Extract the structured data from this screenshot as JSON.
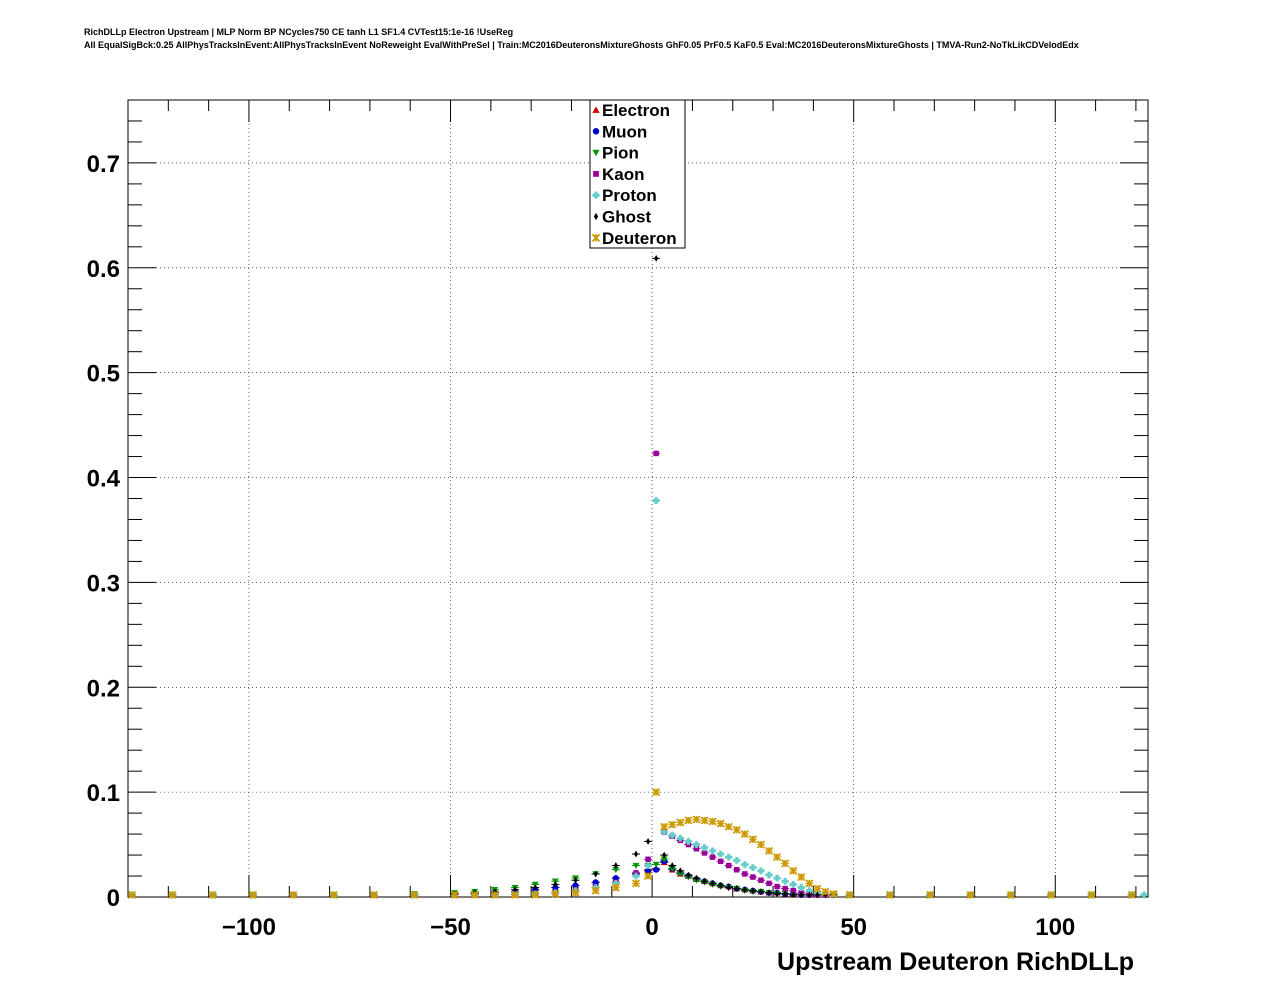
{
  "title": {
    "line1": "RichDLLp Electron Upstream | MLP Norm BP NCycles750 CE tanh L1 SF1.4 CVTest15:1e-16 !UseReg",
    "line2": "All EqualSigBck:0.25 AllPhysTracksInEvent:AllPhysTracksInEvent NoReweight EvalWithPreSel | Train:MC2016DeuteronsMixtureGhosts GhF0.05 PrF0.5 KaF0.5 Eval:MC2016DeuteronsMixtureGhosts | TMVA-Run2-NoTkLikCDVelodEdx"
  },
  "chart_data": {
    "type": "scatter",
    "xlabel": "Upstream Deuteron RichDLLp",
    "ylabel": "",
    "xlim": [
      -130,
      123
    ],
    "ylim": [
      0,
      0.76
    ],
    "grid": true,
    "legend_position": "top-center",
    "x_ticks": [
      {
        "value": -100,
        "label": "−100"
      },
      {
        "value": -50,
        "label": "−50"
      },
      {
        "value": 0,
        "label": "0"
      },
      {
        "value": 50,
        "label": "50"
      },
      {
        "value": 100,
        "label": "100"
      }
    ],
    "y_ticks": [
      {
        "value": 0,
        "label": "0"
      },
      {
        "value": 0.1,
        "label": "0.1"
      },
      {
        "value": 0.2,
        "label": "0.2"
      },
      {
        "value": 0.3,
        "label": "0.3"
      },
      {
        "value": 0.4,
        "label": "0.4"
      },
      {
        "value": 0.5,
        "label": "0.5"
      },
      {
        "value": 0.6,
        "label": "0.6"
      },
      {
        "value": 0.7,
        "label": "0.7"
      }
    ],
    "series": [
      {
        "name": "Electron",
        "color": "#cc0000",
        "marker": "triangle-up",
        "x": [
          -129,
          -119,
          -109,
          -99,
          -89,
          -79,
          -69,
          -59,
          -49,
          -44,
          -39,
          -34,
          -29,
          -24,
          -19,
          -14,
          -9,
          -4,
          -1,
          1,
          3,
          5,
          7,
          9,
          11,
          13,
          15,
          17,
          19,
          21,
          23,
          25,
          27,
          29,
          31,
          33,
          35,
          37,
          39,
          41,
          43,
          45,
          49,
          59,
          69,
          79,
          89,
          99,
          109,
          119
        ],
        "y": [
          0.002,
          0.002,
          0.002,
          0.002,
          0.002,
          0.002,
          0.002,
          0.002,
          0.002,
          0.003,
          0.004,
          0.005,
          0.007,
          0.009,
          0.011,
          0.014,
          0.018,
          0.022,
          0.026,
          0.027,
          0.033,
          0.026,
          0.022,
          0.02,
          0.017,
          0.015,
          0.013,
          0.011,
          0.01,
          0.008,
          0.007,
          0.006,
          0.005,
          0.004,
          0.004,
          0.003,
          0.003,
          0.002,
          0.002,
          0.002,
          0.002,
          0.002,
          0.002,
          0.002,
          0.002,
          0.002,
          0.002,
          0.002,
          0.002,
          0.002
        ]
      },
      {
        "name": "Muon",
        "color": "#0000cc",
        "marker": "circle",
        "x": [
          -129,
          -119,
          -109,
          -99,
          -89,
          -79,
          -69,
          -59,
          -49,
          -44,
          -39,
          -34,
          -29,
          -24,
          -19,
          -14,
          -9,
          -4,
          -1,
          1,
          3,
          5,
          7,
          9,
          11,
          13,
          15,
          17,
          19,
          21,
          23,
          25,
          27,
          29,
          31,
          33,
          35,
          37,
          39,
          41,
          43,
          45,
          49,
          59,
          69,
          79,
          89,
          99,
          109,
          119
        ],
        "y": [
          0.002,
          0.002,
          0.002,
          0.002,
          0.002,
          0.002,
          0.002,
          0.002,
          0.002,
          0.003,
          0.004,
          0.005,
          0.007,
          0.009,
          0.011,
          0.014,
          0.018,
          0.022,
          0.025,
          0.026,
          0.034,
          0.027,
          0.023,
          0.02,
          0.017,
          0.015,
          0.013,
          0.011,
          0.01,
          0.008,
          0.007,
          0.006,
          0.005,
          0.004,
          0.004,
          0.003,
          0.003,
          0.002,
          0.002,
          0.002,
          0.002,
          0.002,
          0.002,
          0.002,
          0.002,
          0.002,
          0.002,
          0.002,
          0.002,
          0.002
        ]
      },
      {
        "name": "Pion",
        "color": "#009900",
        "marker": "triangle-down",
        "x": [
          -129,
          -119,
          -109,
          -99,
          -89,
          -79,
          -69,
          -59,
          -49,
          -44,
          -39,
          -34,
          -29,
          -24,
          -19,
          -14,
          -9,
          -4,
          -1,
          1,
          3,
          5,
          7,
          9,
          11,
          13,
          15,
          17,
          19,
          21,
          23,
          25,
          27,
          29,
          31,
          33,
          35,
          37,
          39,
          41,
          43,
          45,
          49,
          59,
          69,
          79,
          89,
          99,
          109,
          119
        ],
        "y": [
          0.002,
          0.002,
          0.002,
          0.002,
          0.002,
          0.002,
          0.002,
          0.003,
          0.004,
          0.005,
          0.007,
          0.009,
          0.012,
          0.015,
          0.018,
          0.022,
          0.026,
          0.03,
          0.03,
          0.031,
          0.036,
          0.027,
          0.022,
          0.019,
          0.016,
          0.014,
          0.012,
          0.01,
          0.009,
          0.008,
          0.006,
          0.005,
          0.005,
          0.004,
          0.003,
          0.003,
          0.002,
          0.002,
          0.002,
          0.002,
          0.002,
          0.002,
          0.002,
          0.002,
          0.002,
          0.002,
          0.002,
          0.002,
          0.002,
          0.002
        ]
      },
      {
        "name": "Kaon",
        "color": "#990099",
        "marker": "square",
        "x": [
          -129,
          -119,
          -109,
          -99,
          -89,
          -79,
          -69,
          -59,
          -49,
          -44,
          -39,
          -34,
          -29,
          -24,
          -19,
          -14,
          -9,
          -4,
          -1,
          1,
          3,
          5,
          7,
          9,
          11,
          13,
          15,
          17,
          19,
          21,
          23,
          25,
          27,
          29,
          31,
          33,
          35,
          37,
          39,
          41,
          43,
          45,
          49,
          59,
          69,
          79,
          89,
          99,
          109,
          119
        ],
        "y": [
          0.002,
          0.002,
          0.002,
          0.002,
          0.002,
          0.002,
          0.002,
          0.002,
          0.002,
          0.002,
          0.002,
          0.003,
          0.003,
          0.004,
          0.006,
          0.009,
          0.014,
          0.023,
          0.036,
          0.423,
          0.062,
          0.058,
          0.054,
          0.05,
          0.046,
          0.042,
          0.038,
          0.034,
          0.03,
          0.026,
          0.022,
          0.019,
          0.016,
          0.013,
          0.01,
          0.008,
          0.006,
          0.004,
          0.003,
          0.002,
          0.002,
          0.002,
          0.002,
          0.002,
          0.002,
          0.002,
          0.002,
          0.002,
          0.002,
          0.002
        ]
      },
      {
        "name": "Proton",
        "color": "#66cccc",
        "marker": "cross",
        "x": [
          -129,
          -119,
          -109,
          -99,
          -89,
          -79,
          -69,
          -59,
          -49,
          -44,
          -39,
          -34,
          -29,
          -24,
          -19,
          -14,
          -9,
          -4,
          -1,
          1,
          3,
          5,
          7,
          9,
          11,
          13,
          15,
          17,
          19,
          21,
          23,
          25,
          27,
          29,
          31,
          33,
          35,
          37,
          39,
          41,
          43,
          45,
          49,
          59,
          69,
          79,
          89,
          99,
          109,
          119,
          122
        ],
        "y": [
          0.002,
          0.002,
          0.002,
          0.002,
          0.002,
          0.002,
          0.002,
          0.002,
          0.002,
          0.002,
          0.002,
          0.003,
          0.003,
          0.004,
          0.006,
          0.009,
          0.013,
          0.02,
          0.03,
          0.378,
          0.062,
          0.059,
          0.056,
          0.053,
          0.05,
          0.047,
          0.044,
          0.041,
          0.038,
          0.035,
          0.031,
          0.028,
          0.025,
          0.021,
          0.018,
          0.015,
          0.012,
          0.009,
          0.006,
          0.004,
          0.003,
          0.002,
          0.002,
          0.002,
          0.002,
          0.002,
          0.002,
          0.002,
          0.002,
          0.002,
          0.002
        ]
      },
      {
        "name": "Ghost",
        "color": "#000000",
        "marker": "diamond",
        "x": [
          -129,
          -119,
          -109,
          -99,
          -89,
          -79,
          -69,
          -59,
          -49,
          -44,
          -39,
          -34,
          -29,
          -24,
          -19,
          -14,
          -9,
          -4,
          -1,
          1,
          3,
          5,
          7,
          9,
          11,
          13,
          15,
          17,
          19,
          21,
          23,
          25,
          27,
          29,
          31,
          33,
          35,
          37,
          39,
          41,
          43,
          45,
          49,
          59,
          69,
          79,
          89,
          99,
          109,
          119
        ],
        "y": [
          0.002,
          0.002,
          0.002,
          0.002,
          0.002,
          0.002,
          0.002,
          0.002,
          0.003,
          0.004,
          0.005,
          0.007,
          0.009,
          0.012,
          0.016,
          0.022,
          0.03,
          0.041,
          0.053,
          0.609,
          0.04,
          0.03,
          0.025,
          0.021,
          0.018,
          0.015,
          0.013,
          0.011,
          0.009,
          0.008,
          0.007,
          0.006,
          0.005,
          0.004,
          0.003,
          0.003,
          0.002,
          0.002,
          0.002,
          0.002,
          0.002,
          0.002,
          0.002,
          0.002,
          0.002,
          0.002,
          0.002,
          0.002,
          0.002,
          0.002
        ]
      },
      {
        "name": "Deuteron",
        "color": "#cc9900",
        "marker": "star",
        "x": [
          -129,
          -119,
          -109,
          -99,
          -89,
          -79,
          -69,
          -59,
          -49,
          -44,
          -39,
          -34,
          -29,
          -24,
          -19,
          -14,
          -9,
          -4,
          -1,
          1,
          3,
          5,
          7,
          9,
          11,
          13,
          15,
          17,
          19,
          21,
          23,
          25,
          27,
          29,
          31,
          33,
          35,
          37,
          39,
          41,
          43,
          45,
          49,
          59,
          69,
          79,
          89,
          99,
          109,
          119
        ],
        "y": [
          0.002,
          0.002,
          0.002,
          0.002,
          0.002,
          0.002,
          0.002,
          0.002,
          0.002,
          0.002,
          0.002,
          0.002,
          0.002,
          0.003,
          0.004,
          0.006,
          0.009,
          0.013,
          0.02,
          0.1,
          0.067,
          0.069,
          0.071,
          0.073,
          0.074,
          0.073,
          0.072,
          0.07,
          0.067,
          0.064,
          0.06,
          0.055,
          0.05,
          0.044,
          0.038,
          0.032,
          0.025,
          0.019,
          0.013,
          0.008,
          0.005,
          0.003,
          0.002,
          0.002,
          0.002,
          0.002,
          0.002,
          0.002,
          0.002,
          0.002
        ]
      }
    ]
  }
}
